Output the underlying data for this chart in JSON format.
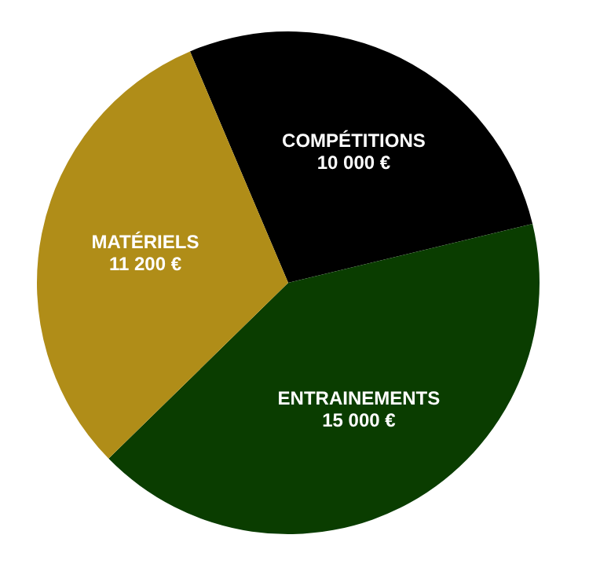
{
  "chart_data": {
    "type": "pie",
    "categories": [
      "COMPÉTITIONS",
      "ENTRAINEMENTS",
      "MATÉRIELS"
    ],
    "values": [
      10000,
      15000,
      11200
    ],
    "value_labels": [
      "10 000 €",
      "15 000 €",
      "11 200 €"
    ],
    "colors": [
      "#000000",
      "#0a3d00",
      "#b08d18"
    ],
    "legend": false
  }
}
